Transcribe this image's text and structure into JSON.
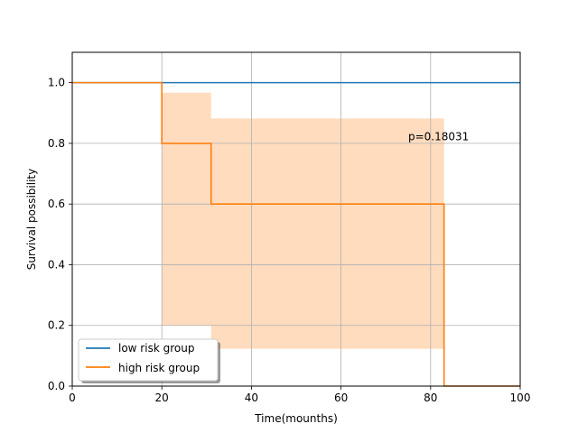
{
  "chart_data": {
    "type": "line",
    "title": "",
    "xlabel": "Time(mounths)",
    "ylabel": "Survival possibility",
    "xlim": [
      0,
      100
    ],
    "ylim": [
      0,
      1.1
    ],
    "xticks": [
      0,
      20,
      40,
      60,
      80,
      100
    ],
    "yticks": [
      0.0,
      0.2,
      0.4,
      0.6,
      0.8,
      1.0
    ],
    "xtick_labels": [
      "0",
      "20",
      "40",
      "60",
      "80",
      "100"
    ],
    "ytick_labels": [
      "0.0",
      "0.2",
      "0.4",
      "0.6",
      "0.8",
      "1.0"
    ],
    "grid": true,
    "legend_position": "lower-left",
    "annotation": {
      "text": "p=0.18031",
      "x": 75,
      "y": 0.81
    },
    "series": [
      {
        "name": "low risk group",
        "color": "#1f77b4",
        "step": [
          [
            0,
            1.0
          ],
          [
            100,
            1.0
          ]
        ]
      },
      {
        "name": "high risk group",
        "color": "#ff7f0e",
        "step": [
          [
            0,
            1.0
          ],
          [
            20,
            0.8
          ],
          [
            31,
            0.6
          ],
          [
            83,
            0.0
          ],
          [
            100,
            0.0
          ]
        ],
        "confidence_band": [
          {
            "x0": 20,
            "x1": 31,
            "lower": 0.2,
            "upper": 0.967
          },
          {
            "x0": 31,
            "x1": 83,
            "lower": 0.123,
            "upper": 0.882
          }
        ]
      }
    ]
  }
}
